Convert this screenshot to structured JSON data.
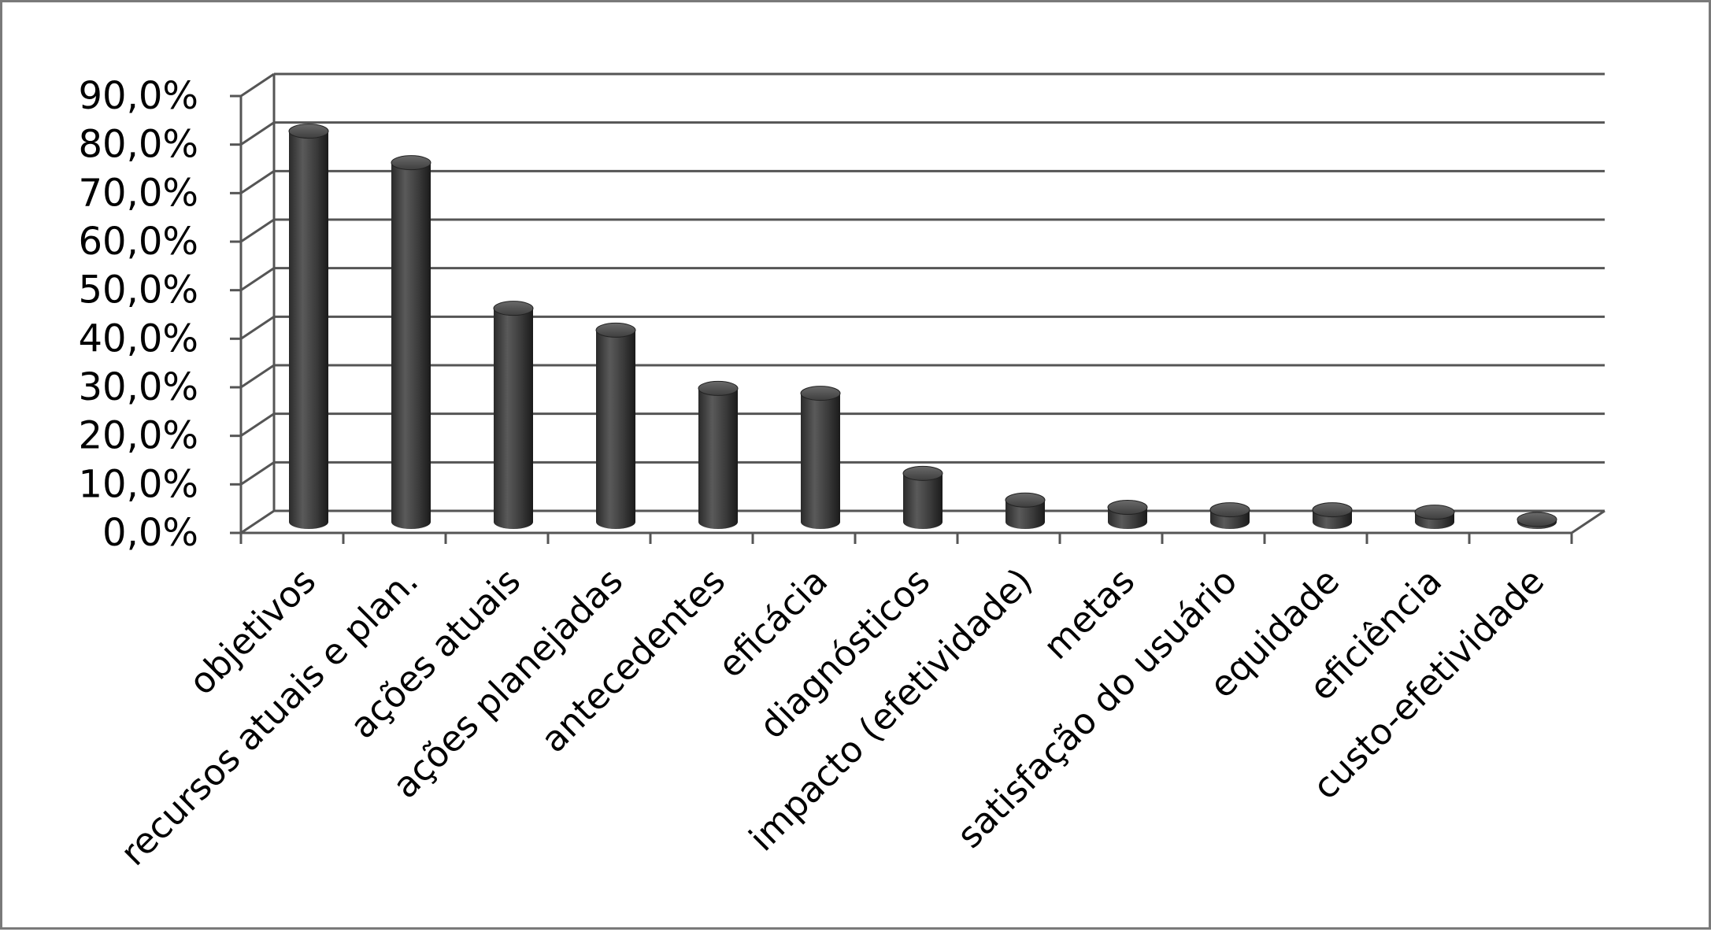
{
  "chart_data": {
    "type": "bar",
    "title": "",
    "xlabel": "",
    "ylabel": "",
    "ylim": [
      0,
      90
    ],
    "y_ticks": [
      "0,0%",
      "10,0%",
      "20,0%",
      "30,0%",
      "40,0%",
      "50,0%",
      "60,0%",
      "70,0%",
      "80,0%",
      "90,0%"
    ],
    "y_tick_values": [
      0,
      10,
      20,
      30,
      40,
      50,
      60,
      70,
      80,
      90
    ],
    "categories": [
      "objetivos",
      "recursos atuais e plan.",
      "ações atuais",
      "ações planejadas",
      "antecedentes",
      "eficácia",
      "diagnósticos",
      "impacto (efetividade)",
      "metas",
      "satisfação do usuário",
      "equidade",
      "eficiência",
      "custo-efetividade"
    ],
    "values": [
      80.5,
      74.0,
      44.0,
      39.5,
      27.5,
      26.5,
      10.0,
      4.5,
      3.0,
      2.5,
      2.5,
      2.0,
      0.5
    ],
    "bar_style": "3d-cylinder",
    "bar_color": "#3a3a3a",
    "grid": true,
    "legend": "none"
  }
}
